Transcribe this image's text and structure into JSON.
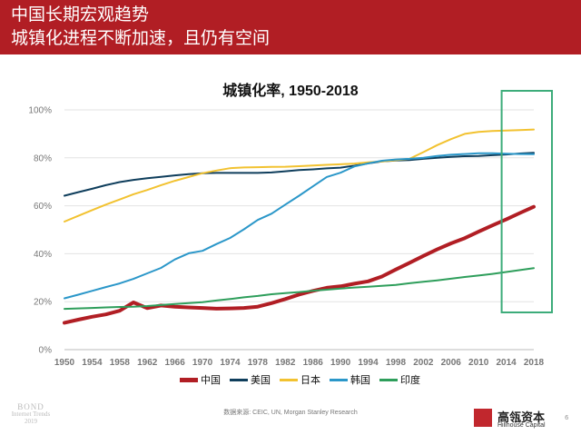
{
  "header": {
    "title_line1": "中国长期宏观趋势",
    "title_line2": "城镇化进程不断加速，且仍有空间",
    "bg_color": "#b11e24"
  },
  "chart_data": {
    "type": "line",
    "title": "城镇化率, 1950-2018",
    "xlabel": "",
    "ylabel": "",
    "x": [
      1950,
      1952,
      1954,
      1956,
      1958,
      1960,
      1962,
      1964,
      1966,
      1968,
      1970,
      1972,
      1974,
      1976,
      1978,
      1980,
      1982,
      1984,
      1986,
      1988,
      1990,
      1992,
      1994,
      1996,
      1998,
      2000,
      2002,
      2004,
      2006,
      2008,
      2010,
      2012,
      2014,
      2016,
      2018
    ],
    "xticks": [
      1950,
      1954,
      1958,
      1962,
      1966,
      1970,
      1974,
      1978,
      1982,
      1986,
      1990,
      1994,
      1998,
      2002,
      2006,
      2010,
      2014,
      2018
    ],
    "yticks": [
      "0%",
      "20%",
      "40%",
      "60%",
      "80%",
      "100%"
    ],
    "ylim": [
      0,
      100
    ],
    "grid": true,
    "legend": "bottom",
    "series": [
      {
        "name": "中国",
        "color": "#b11e24",
        "values": [
          11.2,
          12.5,
          13.7,
          14.7,
          16.2,
          19.7,
          17.3,
          18.4,
          17.9,
          17.6,
          17.4,
          17.1,
          17.2,
          17.4,
          17.9,
          19.4,
          21.1,
          23.0,
          24.5,
          25.8,
          26.4,
          27.5,
          28.5,
          30.5,
          33.4,
          36.2,
          39.1,
          41.8,
          44.3,
          46.5,
          49.2,
          51.8,
          54.3,
          57.0,
          59.6
        ]
      },
      {
        "name": "美国",
        "color": "#0f3e5c",
        "values": [
          64.2,
          65.7,
          67.1,
          68.6,
          69.9,
          70.8,
          71.5,
          72.1,
          72.7,
          73.2,
          73.6,
          73.7,
          73.7,
          73.7,
          73.7,
          73.9,
          74.4,
          74.9,
          75.2,
          75.6,
          75.9,
          76.7,
          77.7,
          78.5,
          78.9,
          79.1,
          79.6,
          80.0,
          80.4,
          80.7,
          80.8,
          81.1,
          81.4,
          81.8,
          82.1
        ]
      },
      {
        "name": "日本",
        "color": "#f2c230",
        "values": [
          53.4,
          55.8,
          58.2,
          60.5,
          62.6,
          64.8,
          66.6,
          68.6,
          70.4,
          72.0,
          73.6,
          74.7,
          75.7,
          76.0,
          76.1,
          76.2,
          76.3,
          76.5,
          76.8,
          77.1,
          77.3,
          77.6,
          78.1,
          78.5,
          79.0,
          79.6,
          82.4,
          85.3,
          87.8,
          90.0,
          90.8,
          91.2,
          91.4,
          91.6,
          91.8
        ]
      },
      {
        "name": "韩国",
        "color": "#2b97c9",
        "values": [
          21.4,
          22.9,
          24.5,
          26.1,
          27.6,
          29.5,
          31.8,
          34.1,
          37.6,
          40.2,
          41.2,
          44.0,
          46.6,
          50.2,
          54.1,
          56.7,
          60.5,
          64.2,
          68.1,
          72.0,
          73.8,
          76.4,
          77.7,
          78.8,
          79.3,
          79.6,
          80.0,
          80.8,
          81.3,
          81.6,
          81.9,
          81.9,
          81.7,
          81.6,
          81.5
        ]
      },
      {
        "name": "印度",
        "color": "#2e9e5b",
        "values": [
          17.0,
          17.2,
          17.4,
          17.6,
          17.8,
          17.9,
          18.2,
          18.6,
          19.0,
          19.4,
          19.8,
          20.5,
          21.1,
          21.8,
          22.4,
          23.1,
          23.6,
          24.0,
          24.6,
          25.0,
          25.5,
          25.9,
          26.2,
          26.6,
          27.0,
          27.7,
          28.3,
          28.9,
          29.6,
          30.3,
          30.9,
          31.6,
          32.4,
          33.2,
          34.0
        ]
      }
    ]
  },
  "highlight_box": {
    "from": 2014,
    "to": 2018,
    "color": "#3dac7a"
  },
  "source": "数据来源: CEIC, UN, Morgan Stanley Research",
  "footer_left": {
    "line1": "BOND",
    "line2": "Internet Trends",
    "line3": "2019"
  },
  "logo": {
    "cn": "高瓴资本",
    "en": "Hillhouse Capital",
    "color": "#c1272d"
  },
  "page_number": "6"
}
